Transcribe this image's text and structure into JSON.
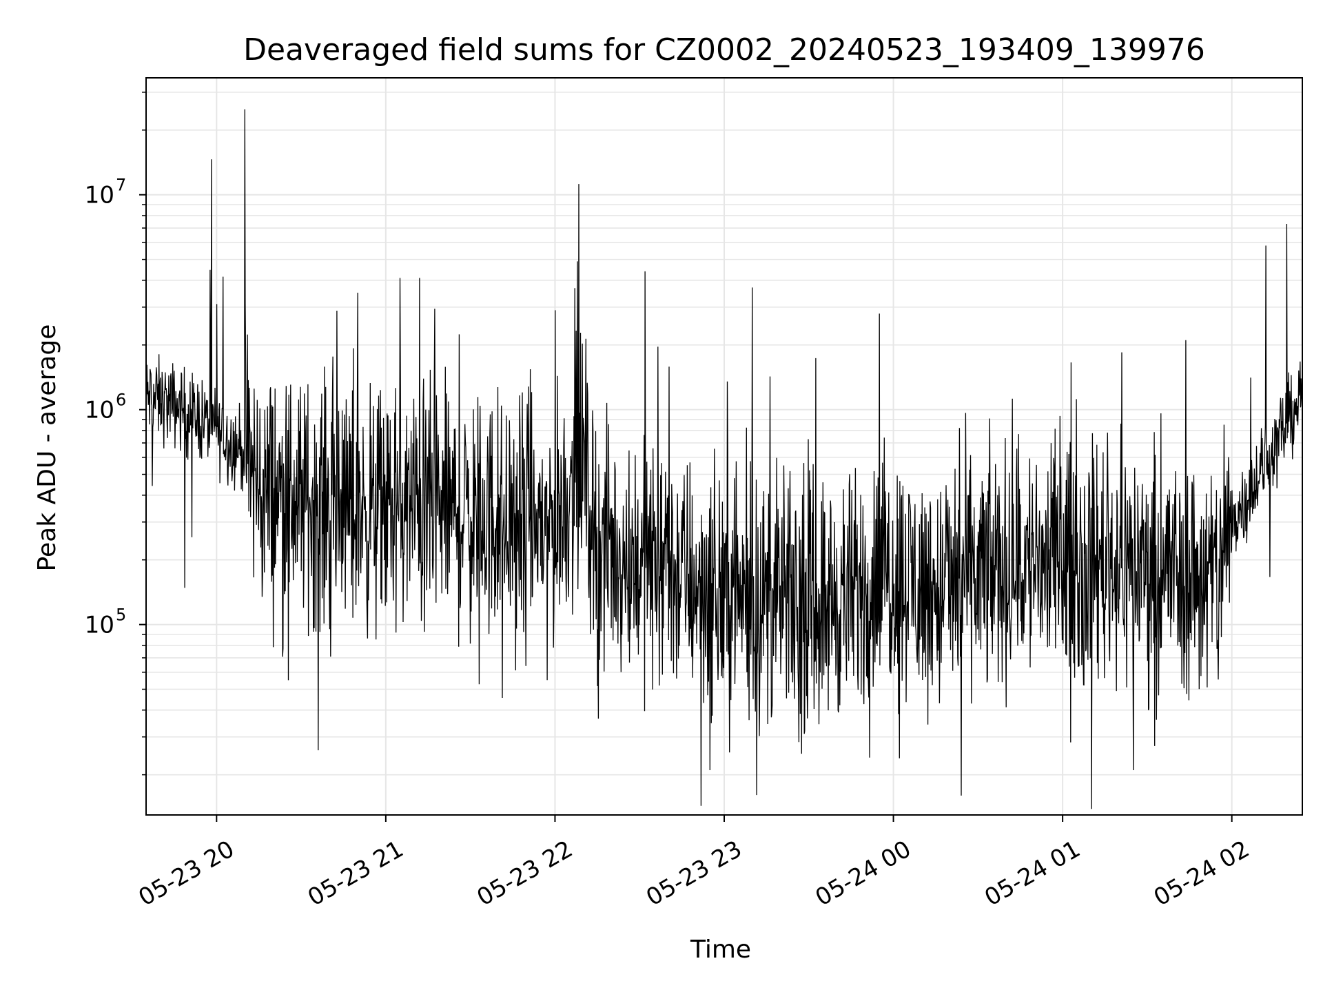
{
  "chart_data": {
    "type": "line",
    "title": "Deaveraged field sums for CZ0002_20240523_193409_139976",
    "xlabel": "Time",
    "ylabel": "Peak ADU - average",
    "yscale": "log",
    "xlim": [
      "2024-05-23 19:35",
      "2024-05-24 02:25"
    ],
    "ylim": [
      13000,
      35000000
    ],
    "grid": true,
    "legend": "none",
    "line_color": "#000000",
    "x_ticks": [
      {
        "t": "2024-05-23 20:00",
        "label": "05-23 20"
      },
      {
        "t": "2024-05-23 21:00",
        "label": "05-23 21"
      },
      {
        "t": "2024-05-23 22:00",
        "label": "05-23 22"
      },
      {
        "t": "2024-05-23 23:00",
        "label": "05-23 23"
      },
      {
        "t": "2024-05-24 00:00",
        "label": "05-24 00"
      },
      {
        "t": "2024-05-24 01:00",
        "label": "05-24 01"
      },
      {
        "t": "2024-05-24 02:00",
        "label": "05-24 02"
      }
    ],
    "y_ticks": [
      {
        "value": 100000,
        "base": "10",
        "exp": "5"
      },
      {
        "value": 1000000,
        "base": "10",
        "exp": "6"
      },
      {
        "value": 10000000,
        "base": "10",
        "exp": "7"
      }
    ],
    "series": [
      {
        "x": [
          "2024-05-23 19:35",
          "2024-05-23 19:45",
          "2024-05-23 19:55",
          "2024-05-23 20:00",
          "2024-05-23 20:05",
          "2024-05-23 20:10",
          "2024-05-23 20:15",
          "2024-05-23 20:30",
          "2024-05-23 20:45",
          "2024-05-23 21:00",
          "2024-05-23 21:15",
          "2024-05-23 21:30",
          "2024-05-23 21:45",
          "2024-05-23 22:00",
          "2024-05-23 22:10",
          "2024-05-23 22:15",
          "2024-05-23 22:30",
          "2024-05-23 22:45",
          "2024-05-23 23:00",
          "2024-05-23 23:15",
          "2024-05-23 23:30",
          "2024-05-23 23:45",
          "2024-05-24 00:00",
          "2024-05-24 00:15",
          "2024-05-24 00:30",
          "2024-05-24 00:45",
          "2024-05-24 01:00",
          "2024-05-24 01:15",
          "2024-05-24 01:30",
          "2024-05-24 01:45",
          "2024-05-24 01:55",
          "2024-05-24 02:00",
          "2024-05-24 02:10",
          "2024-05-24 02:20",
          "2024-05-24 02:25"
        ],
        "y": [
          1150000,
          1050000,
          900000,
          800000,
          700000,
          650000,
          420000,
          380000,
          350000,
          330000,
          360000,
          320000,
          300000,
          290000,
          600000,
          230000,
          200000,
          170000,
          140000,
          130000,
          125000,
          135000,
          180000,
          140000,
          170000,
          190000,
          200000,
          200000,
          190000,
          170000,
          160000,
          300000,
          500000,
          900000,
          1200000
        ]
      }
    ],
    "spikes_up": [
      {
        "t": "2024-05-23 20:00",
        "y": 3100000
      },
      {
        "t": "2024-05-23 20:10",
        "y": 25000000
      },
      {
        "t": "2024-05-23 20:50",
        "y": 3500000
      },
      {
        "t": "2024-05-23 21:05",
        "y": 4100000
      },
      {
        "t": "2024-05-23 21:12",
        "y": 4100000
      },
      {
        "t": "2024-05-23 22:00",
        "y": 2900000
      },
      {
        "t": "2024-05-23 22:08",
        "y": 4900000
      },
      {
        "t": "2024-05-23 22:32",
        "y": 4400000
      },
      {
        "t": "2024-05-23 23:10",
        "y": 3700000
      },
      {
        "t": "2024-05-23 23:55",
        "y": 2800000
      },
      {
        "t": "2024-05-24 02:12",
        "y": 5800000
      }
    ],
    "spikes_down": [
      {
        "t": "2024-05-23 20:36",
        "y": 26000
      },
      {
        "t": "2024-05-23 22:55",
        "y": 21000
      },
      {
        "t": "2024-05-24 00:24",
        "y": 16000
      },
      {
        "t": "2024-05-24 01:25",
        "y": 21000
      }
    ]
  }
}
